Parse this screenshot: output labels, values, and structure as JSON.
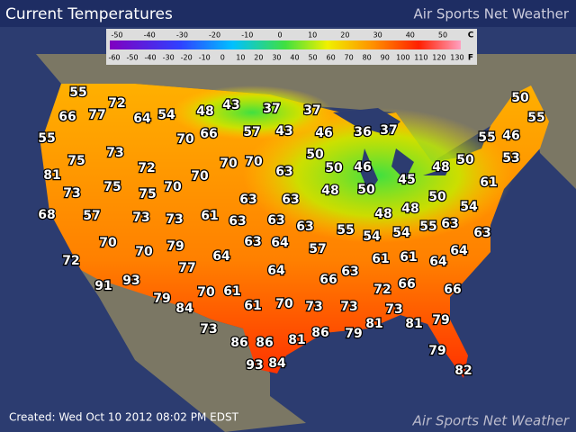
{
  "header": {
    "title": "Current Temperatures",
    "brand": "Air Sports Net Weather"
  },
  "legend": {
    "celsius_unit": "C",
    "celsius_ticks": [
      -50,
      -40,
      -30,
      -20,
      -10,
      0,
      10,
      20,
      30,
      40,
      50
    ],
    "fahrenheit_unit": "F",
    "fahrenheit_ticks": [
      -60,
      -50,
      -40,
      -30,
      -20,
      -10,
      0,
      10,
      20,
      30,
      40,
      50,
      60,
      70,
      80,
      90,
      100,
      110,
      120,
      130
    ]
  },
  "temperatures": [
    55,
    72,
    77,
    66,
    64,
    54,
    48,
    43,
    37,
    37,
    50,
    55,
    55,
    73,
    70,
    66,
    57,
    43,
    46,
    36,
    37,
    55,
    46,
    53,
    75,
    72,
    70,
    70,
    63,
    50,
    50,
    46,
    48,
    50,
    81,
    75,
    75,
    70,
    70,
    61,
    73,
    63,
    63,
    48,
    50,
    45,
    50,
    54,
    68,
    57,
    73,
    73,
    61,
    63,
    63,
    63,
    48,
    48,
    55,
    63,
    55,
    54,
    54,
    63,
    70,
    70,
    79,
    64,
    63,
    64,
    57,
    64,
    72,
    61,
    61,
    64,
    93,
    77,
    64,
    66,
    63,
    91,
    79,
    84,
    70,
    61,
    61,
    70,
    73,
    73,
    72,
    66,
    66,
    73,
    73,
    86,
    86,
    81,
    86,
    79,
    81,
    81,
    79,
    93,
    84,
    79,
    82
  ],
  "footer": {
    "created": "Created: Wed Oct 10 2012 08:02 PM EDST",
    "watermark": "Air Sports Net Weather"
  }
}
